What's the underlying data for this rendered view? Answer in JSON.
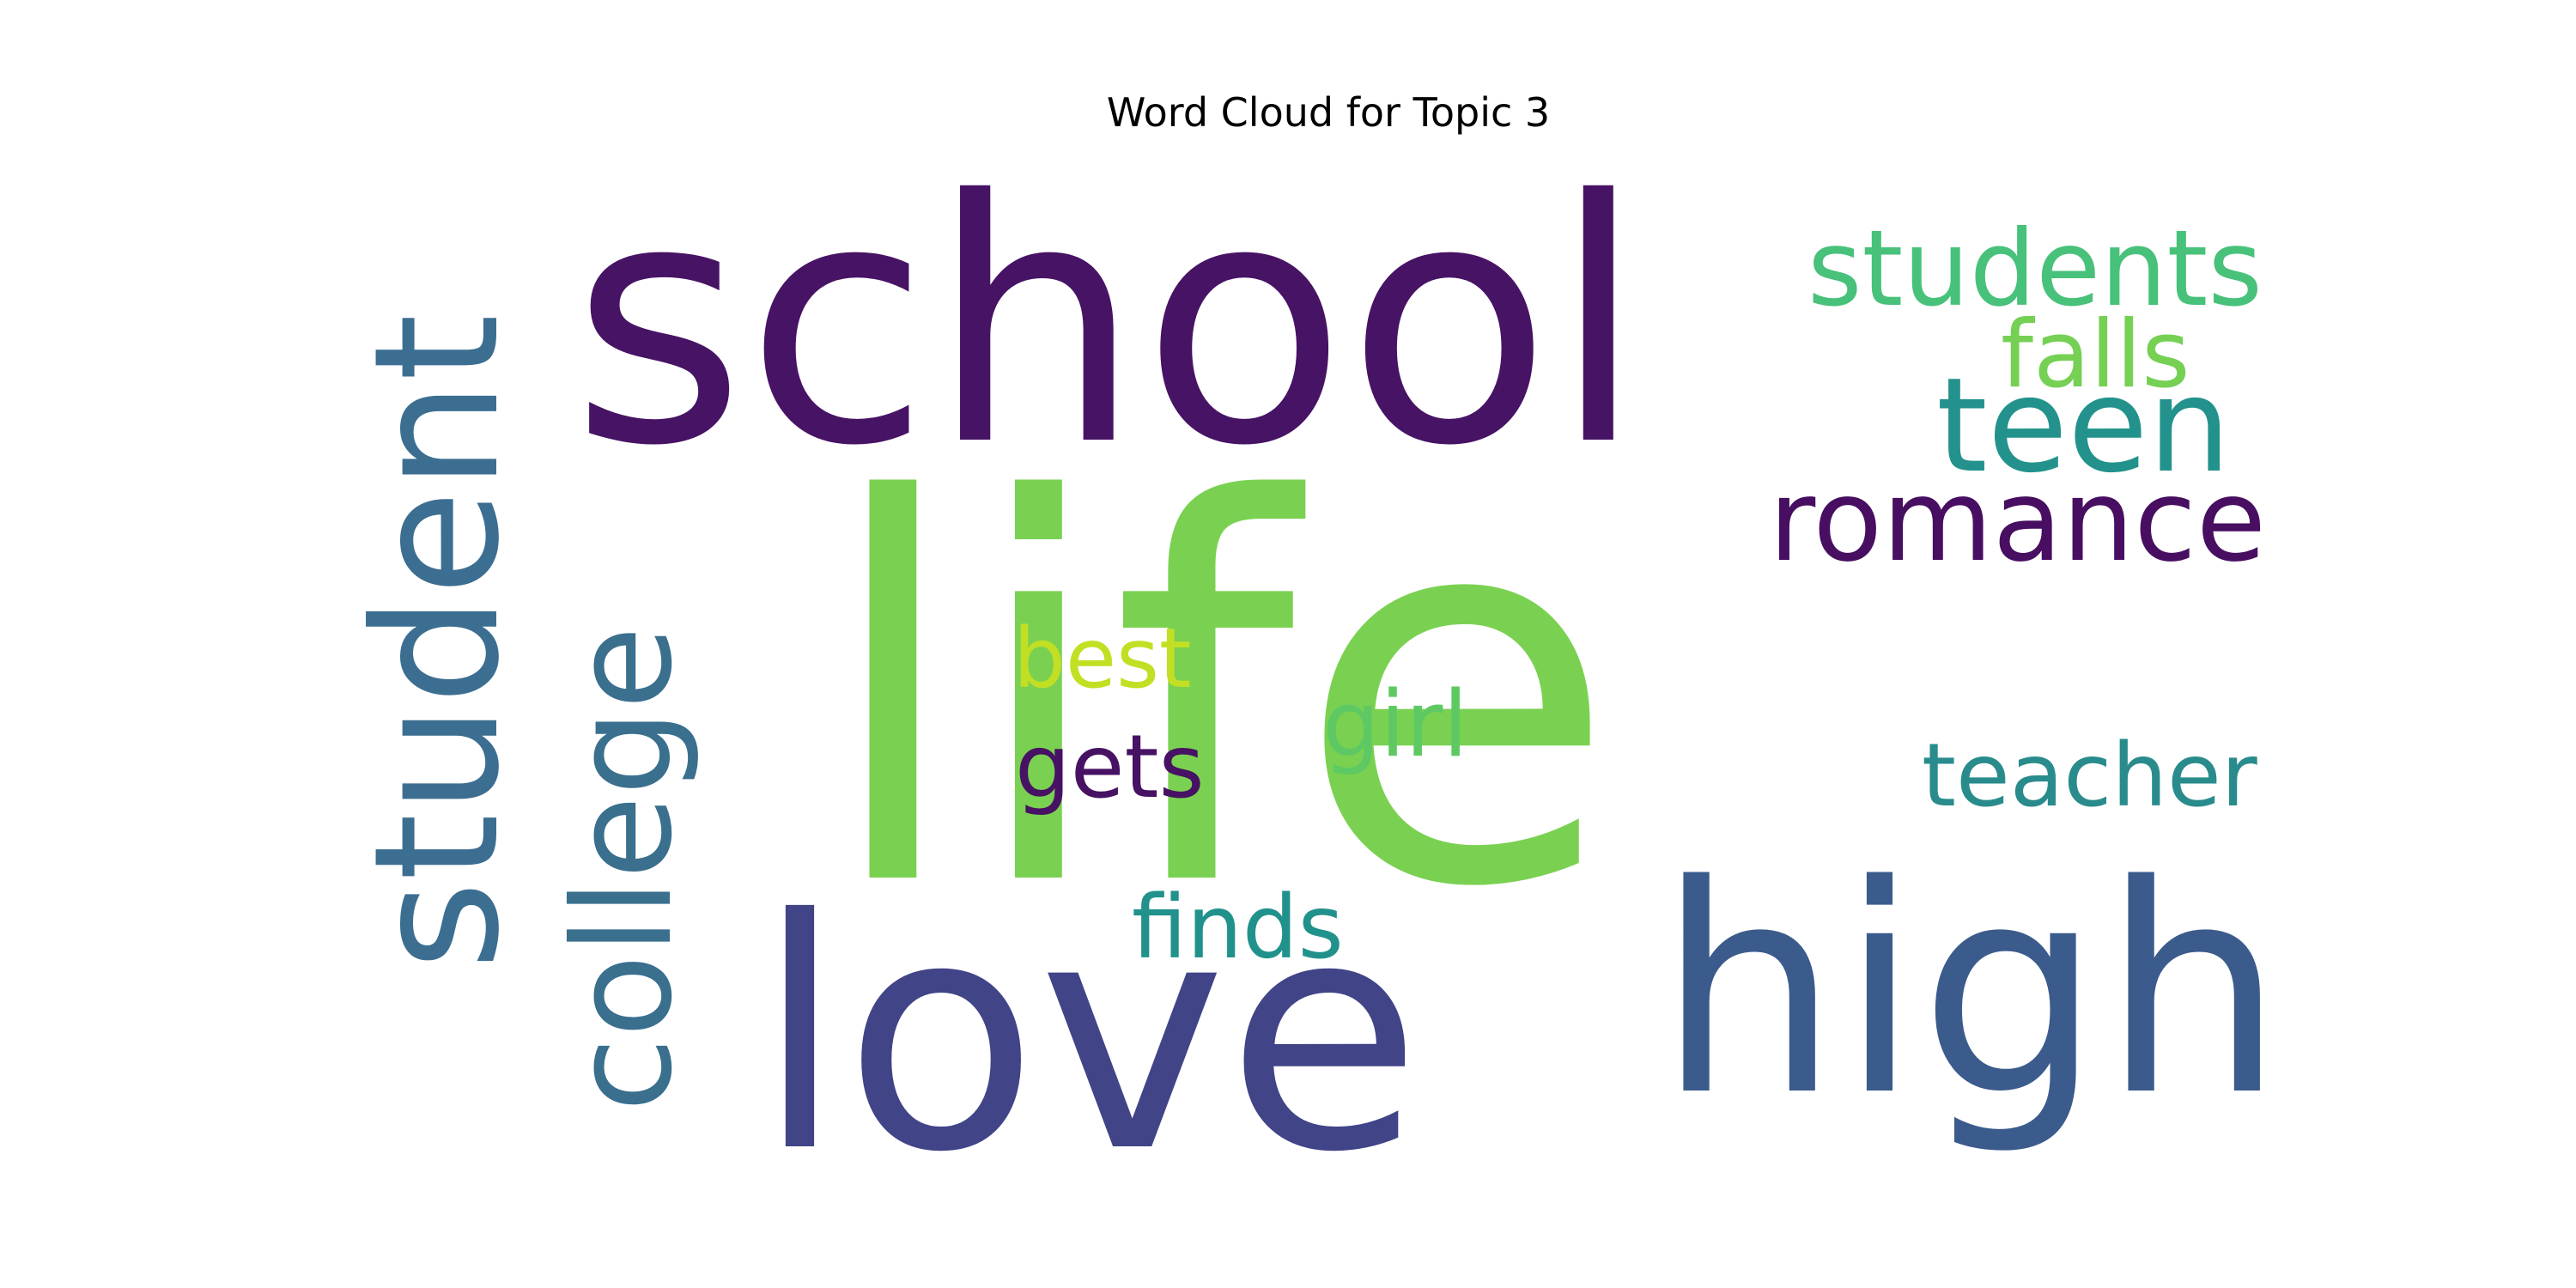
{
  "chart_data": {
    "type": "wordcloud",
    "title": "Word Cloud for Topic 3",
    "words": [
      {
        "text": "life",
        "color": "#7ad151",
        "rotation": "horizontal"
      },
      {
        "text": "school",
        "color": "#471365",
        "rotation": "horizontal"
      },
      {
        "text": "love",
        "color": "#414487",
        "rotation": "horizontal"
      },
      {
        "text": "high",
        "color": "#3b5b8c",
        "rotation": "horizontal"
      },
      {
        "text": "student",
        "color": "#3c6e91",
        "rotation": "vertical"
      },
      {
        "text": "college",
        "color": "#3a6f8e",
        "rotation": "vertical"
      },
      {
        "text": "students",
        "color": "#48c17a",
        "rotation": "horizontal"
      },
      {
        "text": "teen",
        "color": "#23928c",
        "rotation": "horizontal"
      },
      {
        "text": "romance",
        "color": "#470e61",
        "rotation": "horizontal"
      },
      {
        "text": "falls",
        "color": "#75d054",
        "rotation": "horizontal"
      },
      {
        "text": "best",
        "color": "#c2df23",
        "rotation": "horizontal"
      },
      {
        "text": "girl",
        "color": "#5ec962",
        "rotation": "horizontal"
      },
      {
        "text": "gets",
        "color": "#471164",
        "rotation": "horizontal"
      },
      {
        "text": "teacher",
        "color": "#2a8b8c",
        "rotation": "horizontal"
      },
      {
        "text": "finds",
        "color": "#21918c",
        "rotation": "horizontal"
      }
    ]
  }
}
